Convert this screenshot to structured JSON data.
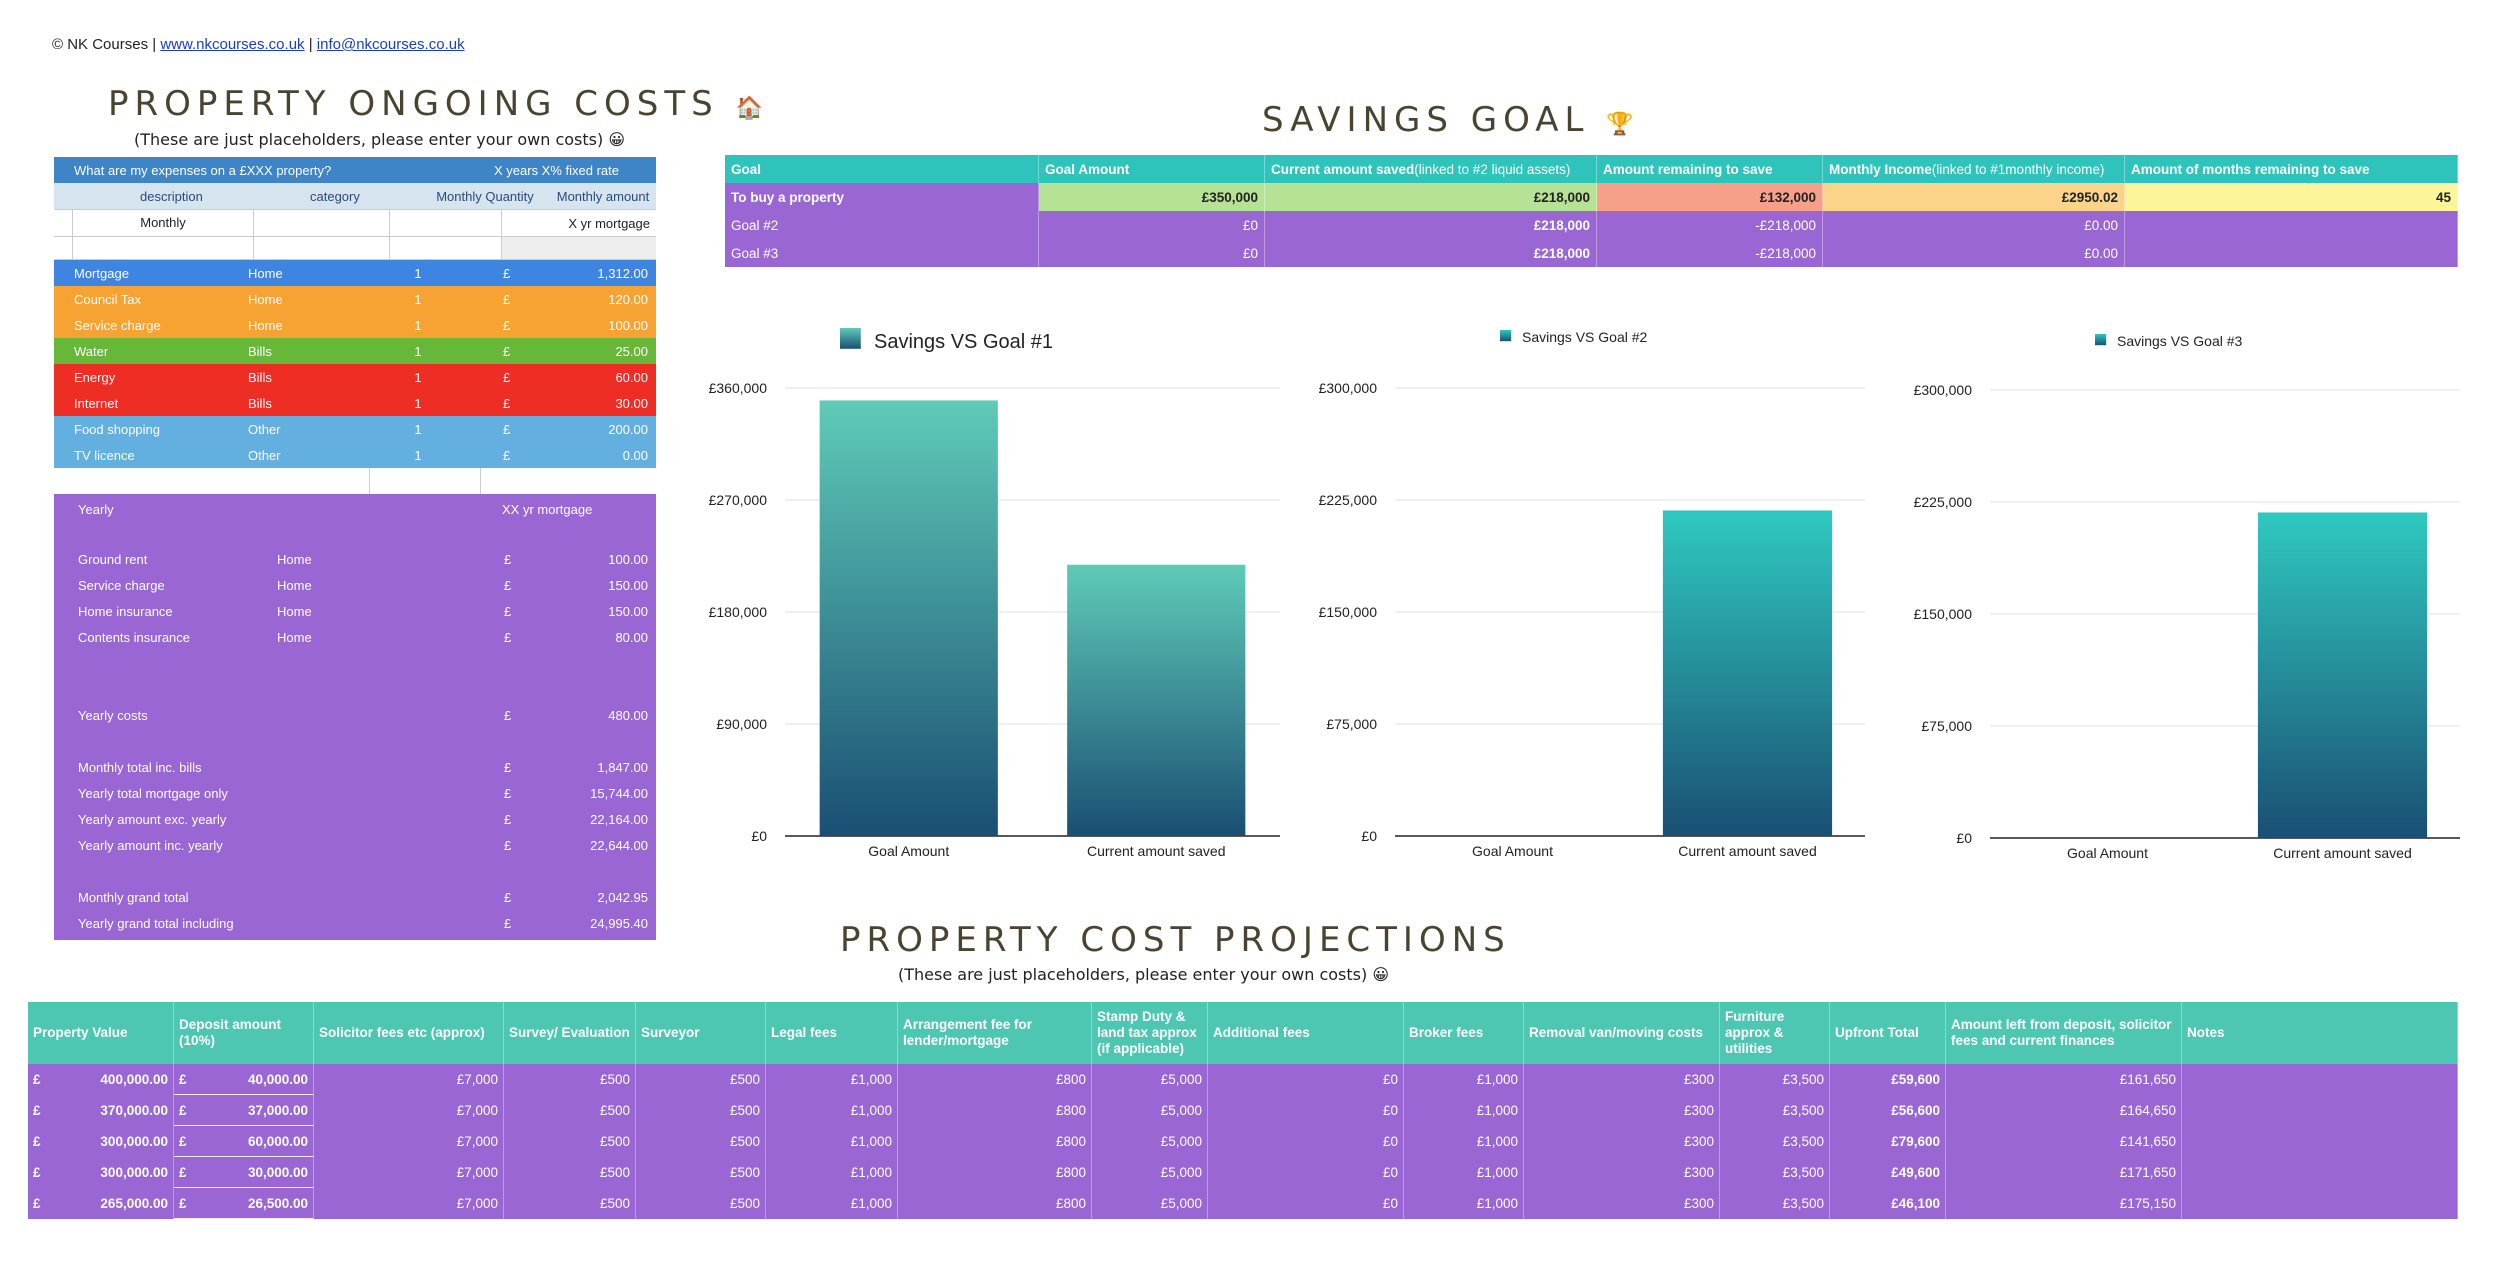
{
  "copyright": {
    "prefix": "© NK Courses | ",
    "website": "www.nkcourses.co.uk",
    "sep": " | ",
    "email": "info@nkcourses.co.uk"
  },
  "ongoing": {
    "title": "PROPERTY ONGOING COSTS",
    "title_icon": "🏠",
    "subtitle": "(These are just placeholders, please enter your own costs) 😀",
    "header_question": "What are my expenses on a £XXX property?",
    "header_rate": "X years X% fixed rate",
    "col_description": "description",
    "col_category": "category",
    "col_quantity": "Monthly Quantity",
    "col_amount": "Monthly amount",
    "monthly_label": "Monthly",
    "monthly_mortgage": "X yr mortgage",
    "currency": "£",
    "monthly_items": [
      {
        "desc": "Mortgage",
        "cat": "Home",
        "qty": "1",
        "amount": "1,312.00",
        "color": "#3d85e0"
      },
      {
        "desc": "Council Tax",
        "cat": "Home",
        "qty": "1",
        "amount": "120.00",
        "color": "#f6a334"
      },
      {
        "desc": "Service charge",
        "cat": "Home",
        "qty": "1",
        "amount": "100.00",
        "color": "#f6a334"
      },
      {
        "desc": "Water",
        "cat": "Bills",
        "qty": "1",
        "amount": "25.00",
        "color": "#67b83a"
      },
      {
        "desc": "Energy",
        "cat": "Bills",
        "qty": "1",
        "amount": "60.00",
        "color": "#ee2d24"
      },
      {
        "desc": "Internet",
        "cat": "Bills",
        "qty": "1",
        "amount": "30.00",
        "color": "#ee2d24"
      },
      {
        "desc": "Food shopping",
        "cat": "Other",
        "qty": "1",
        "amount": "200.00",
        "color": "#62afe0"
      },
      {
        "desc": "TV licence",
        "cat": "Other",
        "qty": "1",
        "amount": "0.00",
        "color": "#62afe0"
      }
    ],
    "yearly_label": "Yearly",
    "yearly_mortgage": "XX yr mortgage",
    "yearly_items": [
      {
        "desc": "Ground rent",
        "cat": "Home",
        "amount": "100.00"
      },
      {
        "desc": "Service charge",
        "cat": "Home",
        "amount": "150.00"
      },
      {
        "desc": "Home insurance",
        "cat": "Home",
        "amount": "150.00"
      },
      {
        "desc": "Contents insurance",
        "cat": "Home",
        "amount": "80.00"
      }
    ],
    "yearly_costs": {
      "label": "Yearly costs",
      "amount": "480.00"
    },
    "totals": [
      {
        "label": "Monthly total inc. bills",
        "amount": "1,847.00"
      },
      {
        "label": "Yearly total mortgage only",
        "amount": "15,744.00"
      },
      {
        "label": "Yearly amount exc. yearly",
        "amount": "22,164.00"
      },
      {
        "label": "Yearly amount inc. yearly",
        "amount": "22,644.00"
      }
    ],
    "grand": [
      {
        "label": "Monthly grand total",
        "amount": "2,042.95"
      },
      {
        "label": "Yearly grand total including",
        "amount": "24,995.40"
      }
    ]
  },
  "savings": {
    "title": "SAVINGS GOAL",
    "title_icon": "🏆",
    "headers": {
      "goal": "Goal",
      "amount": "Goal Amount",
      "saved": "Current amount saved",
      "saved_note": " (linked to #2 liquid assets)",
      "remaining": "Amount remaining to save",
      "income": "Monthly Income",
      "income_note": "(linked to #1monthly income)",
      "months": "Amount of months remaining to save"
    },
    "rows": [
      {
        "goal": "To buy a property",
        "amount": "£350,000",
        "saved": "£218,000",
        "remaining": "£132,000",
        "income": "£2950.02",
        "months": "45"
      },
      {
        "goal": "Goal #2",
        "amount": "£0",
        "saved": "£218,000",
        "remaining": "-£218,000",
        "income": "£0.00",
        "months": ""
      },
      {
        "goal": "Goal #3",
        "amount": "£0",
        "saved": "£218,000",
        "remaining": "-£218,000",
        "income": "£0.00",
        "months": ""
      }
    ]
  },
  "chart_data": [
    {
      "type": "bar",
      "title": "Savings VS Goal #1",
      "legend": "Savings VS Goal #1",
      "categories": [
        "Goal Amount",
        "Current amount saved"
      ],
      "values": [
        350000,
        218000
      ],
      "ylim": [
        0,
        360000
      ],
      "yticks": [
        0,
        90000,
        180000,
        270000,
        360000
      ],
      "ytick_labels": [
        "£0",
        "£90,000",
        "£180,000",
        "£270,000",
        "£360,000"
      ],
      "xlabel": "",
      "ylabel": ""
    },
    {
      "type": "bar",
      "title": "Savings VS Goal #2",
      "legend": "Savings VS Goal #2",
      "categories": [
        "Goal Amount",
        "Current amount saved"
      ],
      "values": [
        0,
        218000
      ],
      "ylim": [
        0,
        300000
      ],
      "yticks": [
        0,
        75000,
        150000,
        225000,
        300000
      ],
      "ytick_labels": [
        "£0",
        "£75,000",
        "£150,000",
        "£225,000",
        "£300,000"
      ],
      "xlabel": "",
      "ylabel": ""
    },
    {
      "type": "bar",
      "title": "Savings VS Goal #3",
      "legend": "Savings VS Goal #3",
      "categories": [
        "Goal Amount",
        "Current amount saved"
      ],
      "values": [
        0,
        218000
      ],
      "ylim": [
        0,
        300000
      ],
      "yticks": [
        0,
        75000,
        150000,
        225000,
        300000
      ],
      "ytick_labels": [
        "£0",
        "£75,000",
        "£150,000",
        "£225,000",
        "£300,000"
      ],
      "xlabel": "",
      "ylabel": ""
    }
  ],
  "projections": {
    "title": "PROPERTY COST PROJECTIONS",
    "subtitle": "(These are just placeholders, please enter your own costs) 😀",
    "headers": [
      "Property Value",
      "Deposit amount (10%)",
      "Solicitor fees etc (approx)",
      "Survey/ Evaluation",
      "Surveyor",
      "Legal fees",
      "Arrangement fee for lender/mortgage",
      "Stamp Duty & land tax approx (if applicable)",
      "Additional fees",
      "Broker fees",
      "Removal van/moving costs",
      "Furniture approx & utilities",
      "Upfront Total",
      "Amount left from deposit, solicitor fees and current finances",
      "Notes"
    ],
    "currency": "£",
    "rows": [
      {
        "value": "400,000.00",
        "deposit": "40,000.00",
        "solicitor": "£7,000",
        "survey": "£500",
        "surveyor": "£500",
        "legal": "£1,000",
        "arrangement": "£800",
        "stamp": "£5,000",
        "additional": "£0",
        "broker": "£1,000",
        "removal": "£300",
        "furniture": "£3,500",
        "upfront": "£59,600",
        "left": "£161,650",
        "notes": ""
      },
      {
        "value": "370,000.00",
        "deposit": "37,000.00",
        "solicitor": "£7,000",
        "survey": "£500",
        "surveyor": "£500",
        "legal": "£1,000",
        "arrangement": "£800",
        "stamp": "£5,000",
        "additional": "£0",
        "broker": "£1,000",
        "removal": "£300",
        "furniture": "£3,500",
        "upfront": "£56,600",
        "left": "£164,650",
        "notes": ""
      },
      {
        "value": "300,000.00",
        "deposit": "60,000.00",
        "solicitor": "£7,000",
        "survey": "£500",
        "surveyor": "£500",
        "legal": "£1,000",
        "arrangement": "£800",
        "stamp": "£5,000",
        "additional": "£0",
        "broker": "£1,000",
        "removal": "£300",
        "furniture": "£3,500",
        "upfront": "£79,600",
        "left": "£141,650",
        "notes": ""
      },
      {
        "value": "300,000.00",
        "deposit": "30,000.00",
        "solicitor": "£7,000",
        "survey": "£500",
        "surveyor": "£500",
        "legal": "£1,000",
        "arrangement": "£800",
        "stamp": "£5,000",
        "additional": "£0",
        "broker": "£1,000",
        "removal": "£300",
        "furniture": "£3,500",
        "upfront": "£49,600",
        "left": "£171,650",
        "notes": ""
      },
      {
        "value": "265,000.00",
        "deposit": "26,500.00",
        "solicitor": "£7,000",
        "survey": "£500",
        "surveyor": "£500",
        "legal": "£1,000",
        "arrangement": "£800",
        "stamp": "£5,000",
        "additional": "£0",
        "broker": "£1,000",
        "removal": "£300",
        "furniture": "£3,500",
        "upfront": "£46,100",
        "left": "£175,150",
        "notes": ""
      }
    ]
  }
}
